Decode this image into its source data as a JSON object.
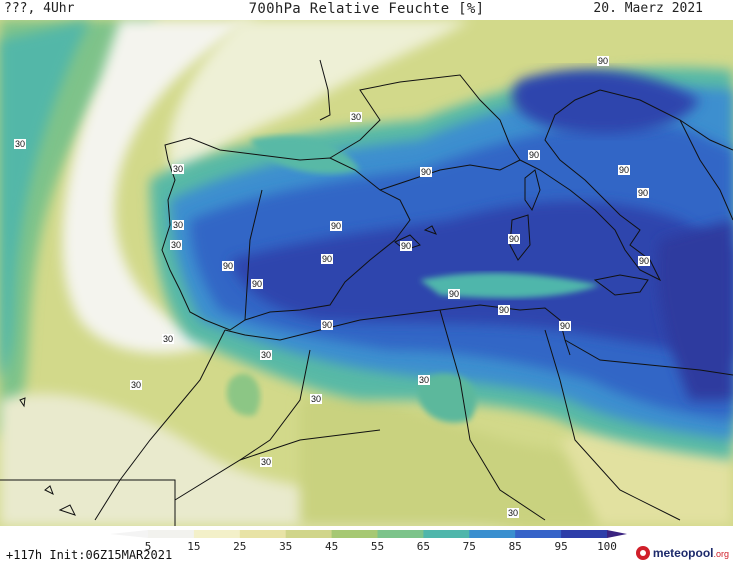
{
  "header": {
    "left": "???, 4Uhr",
    "title": "700hPa Relative Feuchte [%]",
    "date": "20. Maerz 2021"
  },
  "footer": {
    "run": "+117h Init:06Z15MAR2021",
    "logo_main": "meteopool",
    "logo_tld": ".org"
  },
  "legend": {
    "ticks": [
      "5",
      "15",
      "25",
      "35",
      "45",
      "55",
      "65",
      "75",
      "85",
      "95",
      "100"
    ],
    "colors": [
      "#f2f2ee",
      "#f3f0c9",
      "#e8e3a6",
      "#d0d58a",
      "#a6c873",
      "#7cc38a",
      "#4fb6ab",
      "#3a8fcf",
      "#3663c8",
      "#2e3ea9",
      "#3b2380"
    ]
  },
  "map": {
    "contour_labels": [
      {
        "text": "30"
      },
      {
        "text": "30"
      },
      {
        "text": "30"
      },
      {
        "text": "30"
      },
      {
        "text": "30"
      },
      {
        "text": "30"
      },
      {
        "text": "30"
      },
      {
        "text": "30"
      },
      {
        "text": "30"
      },
      {
        "text": "30"
      },
      {
        "text": "30"
      },
      {
        "text": "30"
      },
      {
        "text": "90"
      },
      {
        "text": "90"
      },
      {
        "text": "90"
      },
      {
        "text": "90"
      },
      {
        "text": "90"
      },
      {
        "text": "90"
      },
      {
        "text": "90"
      },
      {
        "text": "90"
      },
      {
        "text": "90"
      },
      {
        "text": "90"
      },
      {
        "text": "90"
      },
      {
        "text": "90"
      },
      {
        "text": "90"
      },
      {
        "text": "90"
      },
      {
        "text": "90"
      },
      {
        "text": "90"
      }
    ]
  }
}
